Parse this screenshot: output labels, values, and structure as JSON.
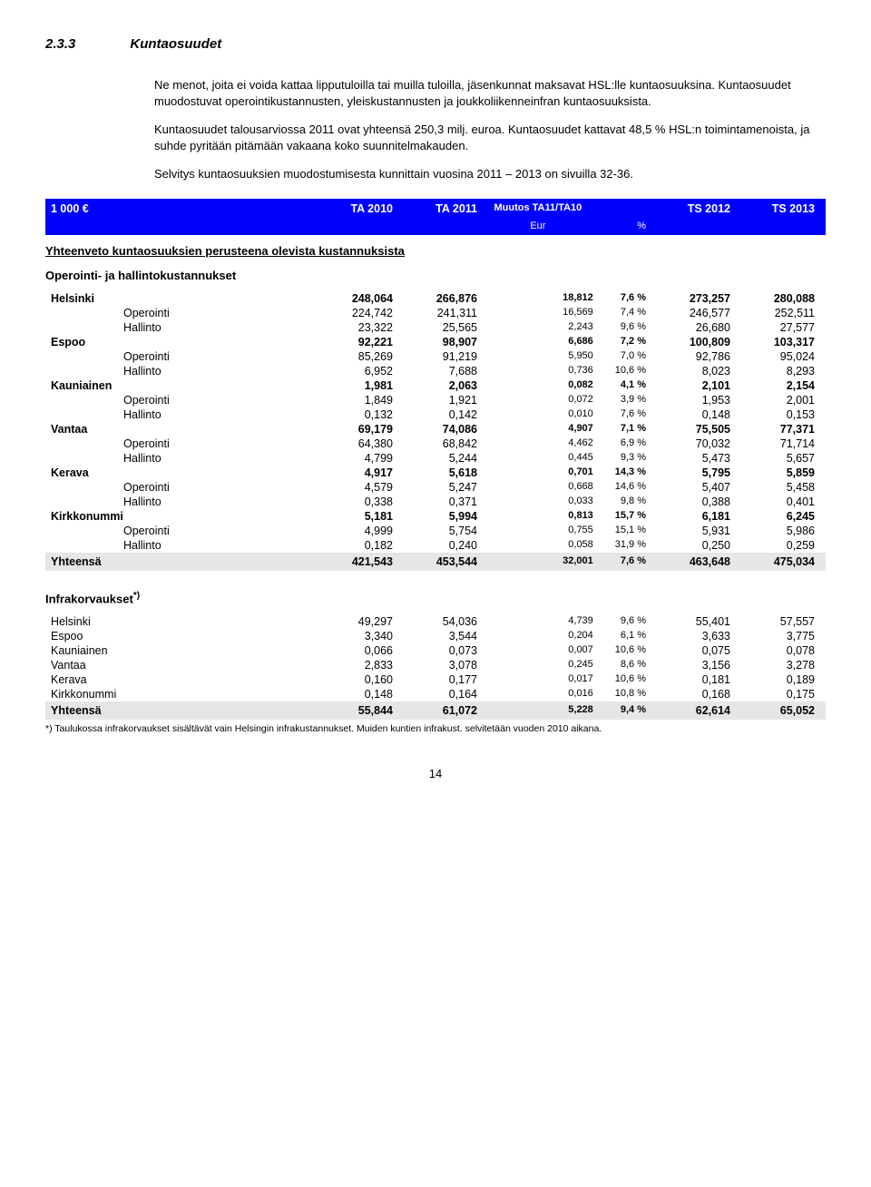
{
  "heading": {
    "num": "2.3.3",
    "title": "Kuntaosuudet"
  },
  "paragraphs": [
    "Ne menot, joita ei voida kattaa lipputuloilla tai muilla tuloilla, jäsenkunnat maksavat HSL:lle kuntaosuuksina. Kuntaosuudet muodostuvat operointikustannusten, yleiskustannusten ja joukkoliikenneinfran kuntaosuuksista.",
    "Kuntaosuudet talousarviossa 2011 ovat yhteensä 250,3 milj. euroa. Kuntaosuudet kattavat 48,5 % HSL:n toimintamenoista, ja suhde pyritään pitämään vakaana koko suunnitelmakauden.",
    "Selvitys kuntaosuuksien muodostumisesta kunnittain vuosina 2011 – 2013 on sivuilla 32-36."
  ],
  "tableHeader": {
    "unit": "1 000 €",
    "cols": [
      "TA 2010",
      "TA 2011",
      "Muutos TA11/TA10",
      "",
      "TS 2012",
      "TS 2013"
    ],
    "sub": [
      "",
      "",
      "Eur",
      "%",
      "",
      ""
    ]
  },
  "summaryTitle": "Yhteenveto kuntaosuuksien perusteena olevista kustannuksista",
  "operTitle": "Operointi- ja hallintokustannukset",
  "operRows": [
    {
      "label": "Helsinki",
      "bold": true,
      "v": [
        "248,064",
        "266,876",
        "18,812",
        "7,6 %",
        "273,257",
        "280,088"
      ]
    },
    {
      "label": "Operointi",
      "indent": true,
      "v": [
        "224,742",
        "241,311",
        "16,569",
        "7,4 %",
        "246,577",
        "252,511"
      ]
    },
    {
      "label": "Hallinto",
      "indent": true,
      "v": [
        "23,322",
        "25,565",
        "2,243",
        "9,6 %",
        "26,680",
        "27,577"
      ]
    },
    {
      "label": "Espoo",
      "bold": true,
      "v": [
        "92,221",
        "98,907",
        "6,686",
        "7,2 %",
        "100,809",
        "103,317"
      ]
    },
    {
      "label": "Operointi",
      "indent": true,
      "v": [
        "85,269",
        "91,219",
        "5,950",
        "7,0 %",
        "92,786",
        "95,024"
      ]
    },
    {
      "label": "Hallinto",
      "indent": true,
      "v": [
        "6,952",
        "7,688",
        "0,736",
        "10,6 %",
        "8,023",
        "8,293"
      ]
    },
    {
      "label": "Kauniainen",
      "bold": true,
      "v": [
        "1,981",
        "2,063",
        "0,082",
        "4,1 %",
        "2,101",
        "2,154"
      ]
    },
    {
      "label": "Operointi",
      "indent": true,
      "v": [
        "1,849",
        "1,921",
        "0,072",
        "3,9 %",
        "1,953",
        "2,001"
      ]
    },
    {
      "label": "Hallinto",
      "indent": true,
      "v": [
        "0,132",
        "0,142",
        "0,010",
        "7,6 %",
        "0,148",
        "0,153"
      ]
    },
    {
      "label": "Vantaa",
      "bold": true,
      "v": [
        "69,179",
        "74,086",
        "4,907",
        "7,1 %",
        "75,505",
        "77,371"
      ]
    },
    {
      "label": "Operointi",
      "indent": true,
      "v": [
        "64,380",
        "68,842",
        "4,462",
        "6,9 %",
        "70,032",
        "71,714"
      ]
    },
    {
      "label": "Hallinto",
      "indent": true,
      "v": [
        "4,799",
        "5,244",
        "0,445",
        "9,3 %",
        "5,473",
        "5,657"
      ]
    },
    {
      "label": "Kerava",
      "bold": true,
      "v": [
        "4,917",
        "5,618",
        "0,701",
        "14,3 %",
        "5,795",
        "5,859"
      ]
    },
    {
      "label": "Operointi",
      "indent": true,
      "v": [
        "4,579",
        "5,247",
        "0,668",
        "14,6 %",
        "5,407",
        "5,458"
      ]
    },
    {
      "label": "Hallinto",
      "indent": true,
      "v": [
        "0,338",
        "0,371",
        "0,033",
        "9,8 %",
        "0,388",
        "0,401"
      ]
    },
    {
      "label": "Kirkkonummi",
      "bold": true,
      "v": [
        "5,181",
        "5,994",
        "0,813",
        "15,7 %",
        "6,181",
        "6,245"
      ]
    },
    {
      "label": "Operointi",
      "indent": true,
      "v": [
        "4,999",
        "5,754",
        "0,755",
        "15,1 %",
        "5,931",
        "5,986"
      ]
    },
    {
      "label": "Hallinto",
      "indent": true,
      "v": [
        "0,182",
        "0,240",
        "0,058",
        "31,9 %",
        "0,250",
        "0,259"
      ]
    }
  ],
  "operTotal": {
    "label": "Yhteensä",
    "v": [
      "421,543",
      "453,544",
      "32,001",
      "7,6 %",
      "463,648",
      "475,034"
    ]
  },
  "infraTitle": "Infrakorvaukset",
  "infraSup": "*)",
  "infraRows": [
    {
      "label": "Helsinki",
      "v": [
        "49,297",
        "54,036",
        "4,739",
        "9,6 %",
        "55,401",
        "57,557"
      ]
    },
    {
      "label": "Espoo",
      "v": [
        "3,340",
        "3,544",
        "0,204",
        "6,1 %",
        "3,633",
        "3,775"
      ]
    },
    {
      "label": "Kauniainen",
      "v": [
        "0,066",
        "0,073",
        "0,007",
        "10,6 %",
        "0,075",
        "0,078"
      ]
    },
    {
      "label": "Vantaa",
      "v": [
        "2,833",
        "3,078",
        "0,245",
        "8,6 %",
        "3,156",
        "3,278"
      ]
    },
    {
      "label": "Kerava",
      "v": [
        "0,160",
        "0,177",
        "0,017",
        "10,6 %",
        "0,181",
        "0,189"
      ]
    },
    {
      "label": "Kirkkonummi",
      "v": [
        "0,148",
        "0,164",
        "0,016",
        "10,8 %",
        "0,168",
        "0,175"
      ]
    }
  ],
  "infraTotal": {
    "label": "Yhteensä",
    "v": [
      "55,844",
      "61,072",
      "5,228",
      "9,4 %",
      "62,614",
      "65,052"
    ]
  },
  "footnote": "*) Taulukossa infrakorvaukset sisältävät vain Helsingin infrakustannukset. Muiden kuntien infrakust. selvitetään vuoden 2010 aikana.",
  "pageNum": "14"
}
